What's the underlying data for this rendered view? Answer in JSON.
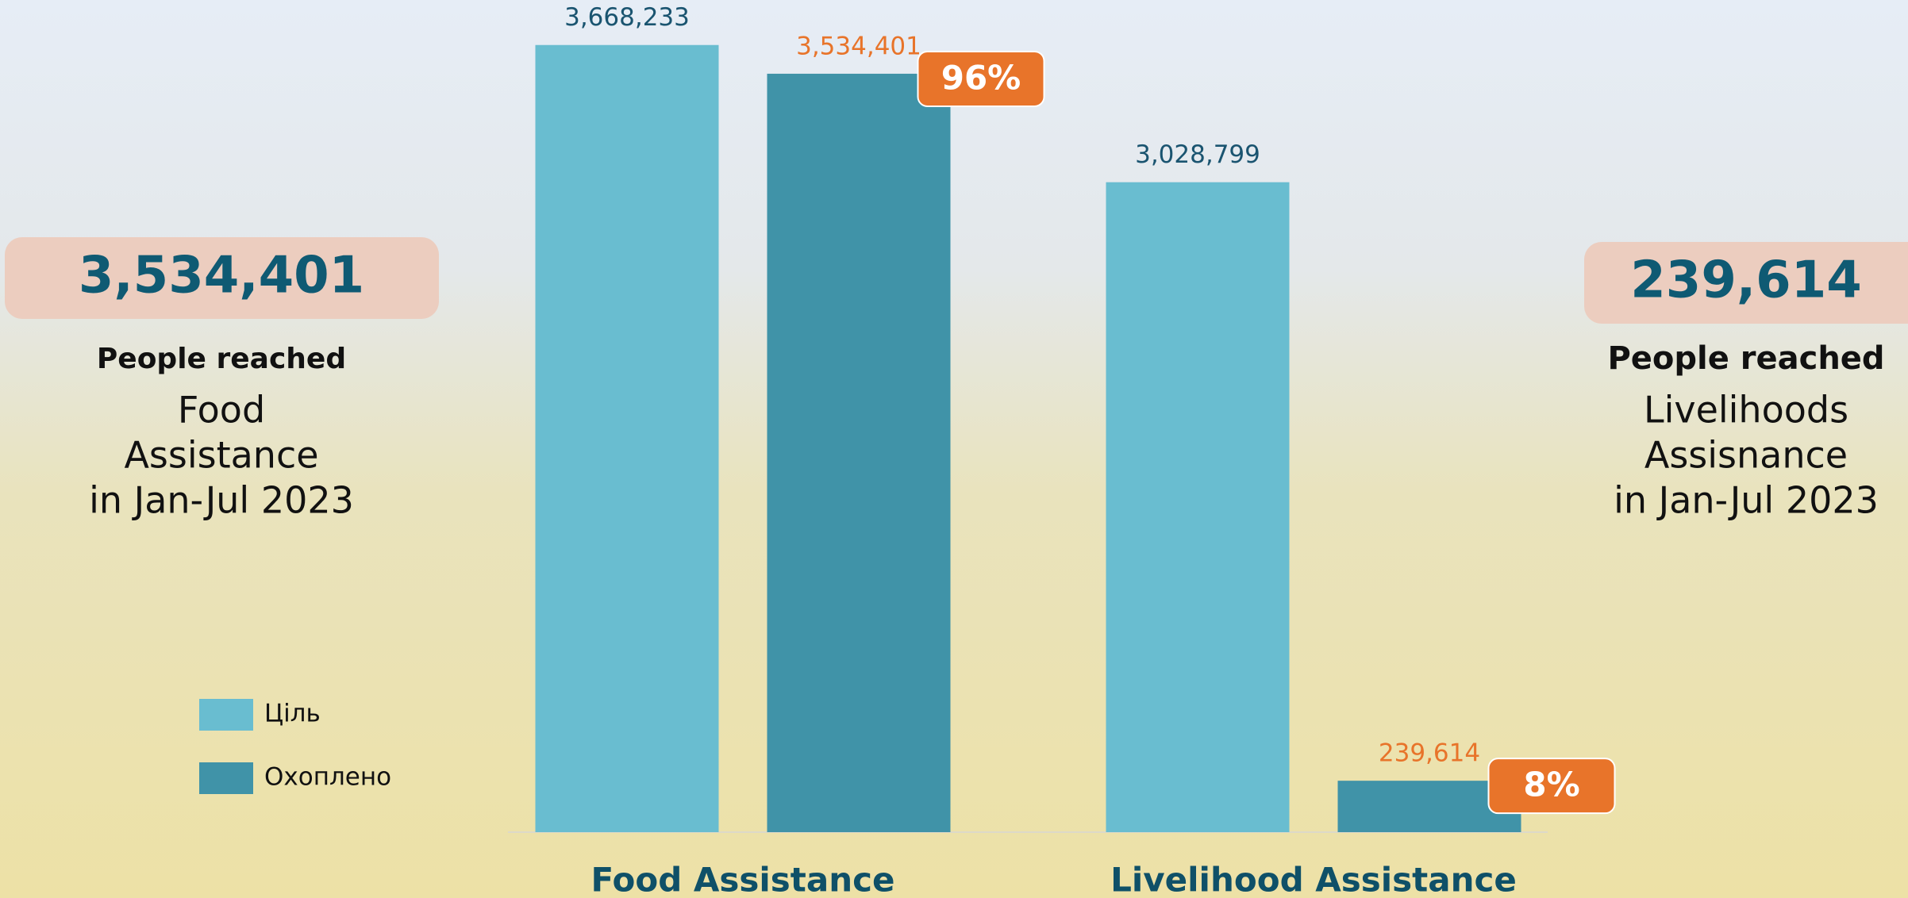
{
  "chart_data": {
    "type": "bar",
    "categories": [
      "Food Assistance",
      "Livelihood Assistance"
    ],
    "series": [
      {
        "name": "Ціль",
        "color": "#69bdd0",
        "label_color": "#1a5470",
        "values": [
          3668233,
          3028799
        ],
        "value_labels": [
          "3,668,233",
          "3,028,799"
        ]
      },
      {
        "name": "Охоплено",
        "color": "#4093a8",
        "label_color": "#e8742a",
        "values": [
          3534401,
          239614
        ],
        "value_labels": [
          "3,534,401",
          "239,614"
        ]
      }
    ],
    "reached_share": [
      {
        "value": 96,
        "label": "96%"
      },
      {
        "value": 8,
        "label": "8%"
      }
    ],
    "badge_color": "#e8742a",
    "ylim": [
      0,
      4000000
    ],
    "grid": false
  },
  "summaries": [
    {
      "value": "3,534,401",
      "label": "People reached",
      "lines": [
        "Food",
        "Assistance",
        "in Jan-Jul 2023"
      ]
    },
    {
      "value": "239,614",
      "label": "People reached",
      "lines": [
        "Livelihoods",
        "Assisnance",
        "in Jan-Jul 2023"
      ]
    }
  ]
}
